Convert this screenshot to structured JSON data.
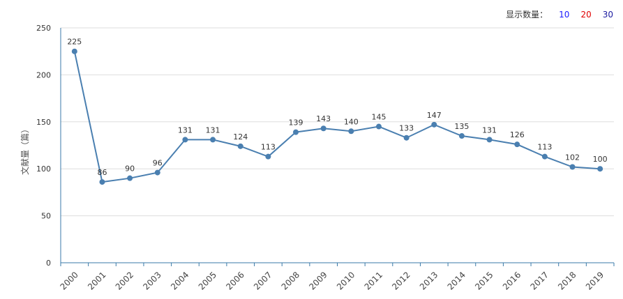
{
  "controls": {
    "label": "显示数量：",
    "options": [
      {
        "label": "10",
        "color": "#1a1aff"
      },
      {
        "label": "20",
        "color": "#e00000"
      },
      {
        "label": "30",
        "color": "#1a1aa0"
      }
    ]
  },
  "chart_data": {
    "type": "line",
    "title": "",
    "xlabel": "",
    "ylabel": "文献量（篇）",
    "ylim": [
      0,
      250
    ],
    "yticks": [
      0,
      50,
      100,
      150,
      200,
      250
    ],
    "categories": [
      "2000",
      "2001",
      "2002",
      "2003",
      "2004",
      "2005",
      "2006",
      "2007",
      "2008",
      "2009",
      "2010",
      "2011",
      "2012",
      "2013",
      "2014",
      "2015",
      "2016",
      "2017",
      "2018",
      "2019"
    ],
    "values": [
      225,
      86,
      90,
      96,
      131,
      131,
      124,
      113,
      139,
      143,
      140,
      145,
      133,
      147,
      135,
      131,
      126,
      113,
      102,
      100
    ],
    "series_color": "#4a7fb0",
    "grid": true
  }
}
